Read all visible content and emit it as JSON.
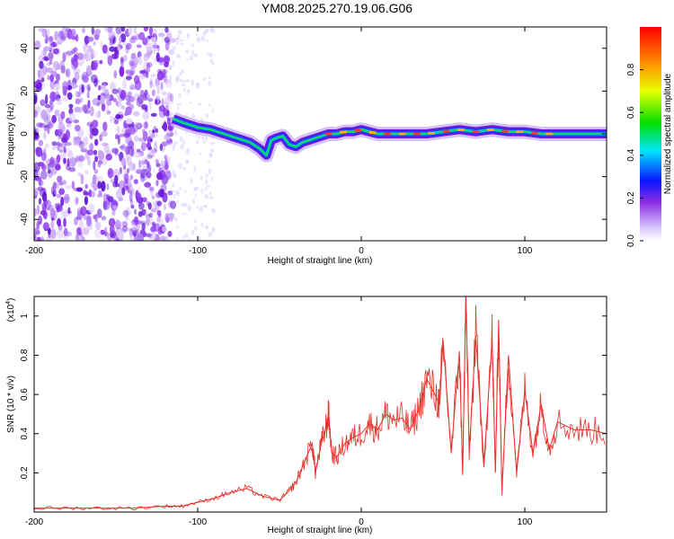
{
  "title": "YM08.2025.270.19.06.G06",
  "chart_data": [
    {
      "type": "heatmap",
      "name": "spectrogram",
      "xlabel": "Height of straight line (km)",
      "ylabel": "Frequency (Hz)",
      "xlim": [
        -200,
        150
      ],
      "ylim": [
        -50,
        50
      ],
      "xticks": [
        -200,
        -100,
        0,
        100
      ],
      "yticks": [
        -40,
        -20,
        0,
        20,
        40
      ],
      "ridge": {
        "x": [
          -115,
          -108,
          -100,
          -92,
          -84,
          -76,
          -68,
          -62,
          -58,
          -55,
          -52,
          -48,
          -44,
          -40,
          -36,
          -32,
          -28,
          -24,
          -20,
          -15,
          -10,
          -5,
          0,
          5,
          10,
          20,
          30,
          40,
          50,
          60,
          70,
          80,
          90,
          100,
          110,
          120,
          130,
          140,
          150
        ],
        "y": [
          7,
          5,
          3,
          2,
          0,
          -2,
          -4,
          -7,
          -10,
          -3,
          -2,
          -1,
          -5,
          -6,
          -4,
          -3,
          -2,
          -1,
          0,
          0,
          1,
          1,
          2,
          1,
          0,
          0,
          0,
          0,
          1,
          2,
          1,
          2,
          1,
          1,
          0,
          0,
          0,
          0,
          0
        ]
      },
      "colorbar": {
        "label": "Normalized spectral amplitude",
        "ticks": [
          0.0,
          0.2,
          0.4,
          0.6,
          0.8
        ],
        "range": [
          0,
          1
        ]
      }
    },
    {
      "type": "line",
      "name": "snr",
      "xlabel": "Height of straight line (km)",
      "ylabel": "SNR (10 * v/v)",
      "y_multiplier": "(x10",
      "y_multiplier_exp": "4",
      "xlim": [
        -200,
        150
      ],
      "ylim": [
        0,
        1.1
      ],
      "xticks": [
        -200,
        -100,
        0,
        100
      ],
      "yticks": [
        0.2,
        0.4,
        0.6,
        0.8,
        1
      ],
      "series": [
        {
          "name": "SNR",
          "color": "#e8322d",
          "x": [
            -200,
            -180,
            -160,
            -140,
            -120,
            -110,
            -100,
            -90,
            -80,
            -70,
            -60,
            -50,
            -45,
            -40,
            -35,
            -30,
            -28,
            -25,
            -22,
            -20,
            -18,
            -15,
            -10,
            -5,
            0,
            5,
            10,
            15,
            20,
            25,
            30,
            35,
            40,
            45,
            48,
            50,
            55,
            60,
            62,
            64,
            66,
            70,
            75,
            80,
            82,
            84,
            86,
            90,
            95,
            100,
            105,
            110,
            115,
            120,
            130,
            140,
            150
          ],
          "values": [
            0.02,
            0.02,
            0.02,
            0.02,
            0.03,
            0.03,
            0.05,
            0.07,
            0.1,
            0.12,
            0.08,
            0.06,
            0.1,
            0.15,
            0.25,
            0.35,
            0.2,
            0.33,
            0.42,
            0.5,
            0.3,
            0.28,
            0.35,
            0.38,
            0.4,
            0.45,
            0.42,
            0.5,
            0.47,
            0.48,
            0.42,
            0.52,
            0.68,
            0.6,
            0.55,
            0.88,
            0.3,
            0.82,
            0.2,
            1.1,
            0.3,
            0.9,
            0.25,
            0.88,
            0.2,
            0.98,
            0.1,
            0.8,
            0.2,
            0.62,
            0.3,
            0.55,
            0.32,
            0.46,
            0.42,
            0.42,
            0.4
          ]
        }
      ]
    }
  ]
}
